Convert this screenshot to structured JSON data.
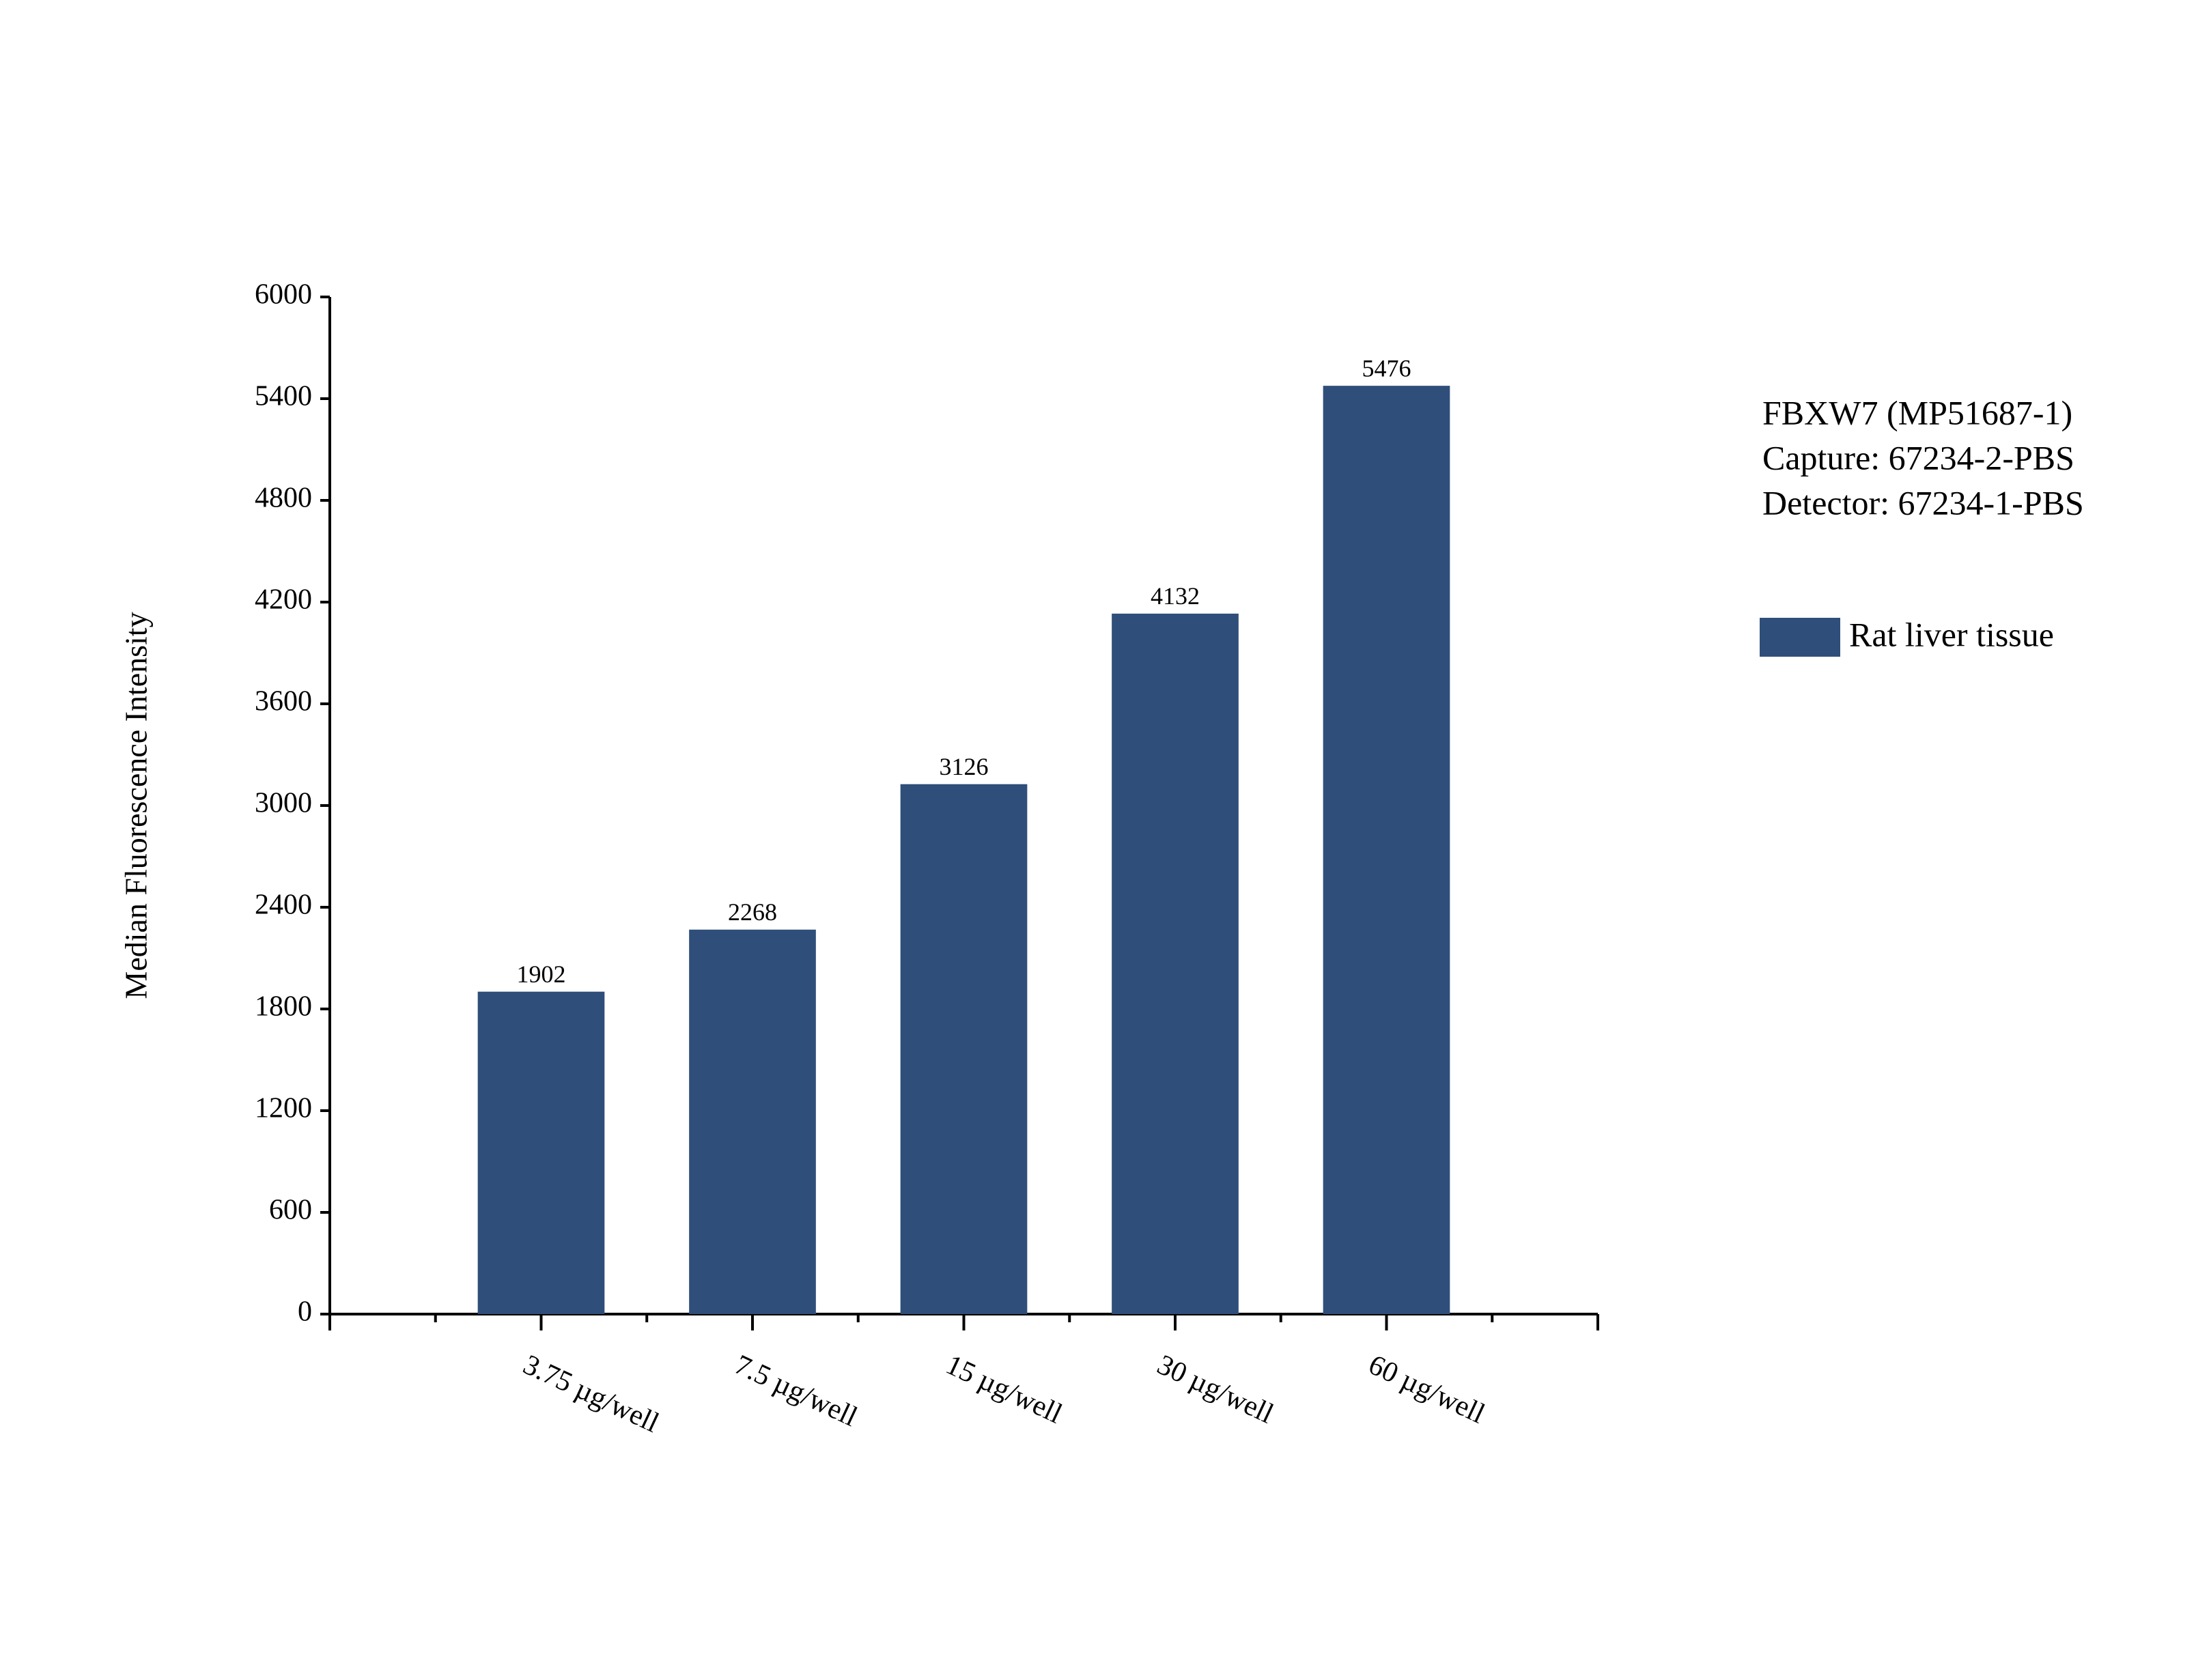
{
  "chart_data": {
    "type": "bar",
    "y_axis_label": "Median Fluorescence Intensity",
    "annotations": [
      "FBXW7 (MP51687-1)",
      "Capture: 67234-2-PBS",
      "Detector: 67234-1-PBS"
    ],
    "categories": [
      "3.75 µg/well",
      "7.5 µg/well",
      "15 µg/well",
      "30 µg/well",
      "60 µg/well"
    ],
    "series": [
      {
        "name": "Rat liver tissue",
        "color": "#2f4f7a",
        "values": [
          1902,
          2268,
          3126,
          4132,
          5476
        ]
      }
    ],
    "ylim": [
      0,
      6000
    ],
    "yticks": [
      0,
      600,
      1200,
      1800,
      2400,
      3000,
      3600,
      4200,
      4800,
      5400,
      6000
    ],
    "legend": "right"
  }
}
